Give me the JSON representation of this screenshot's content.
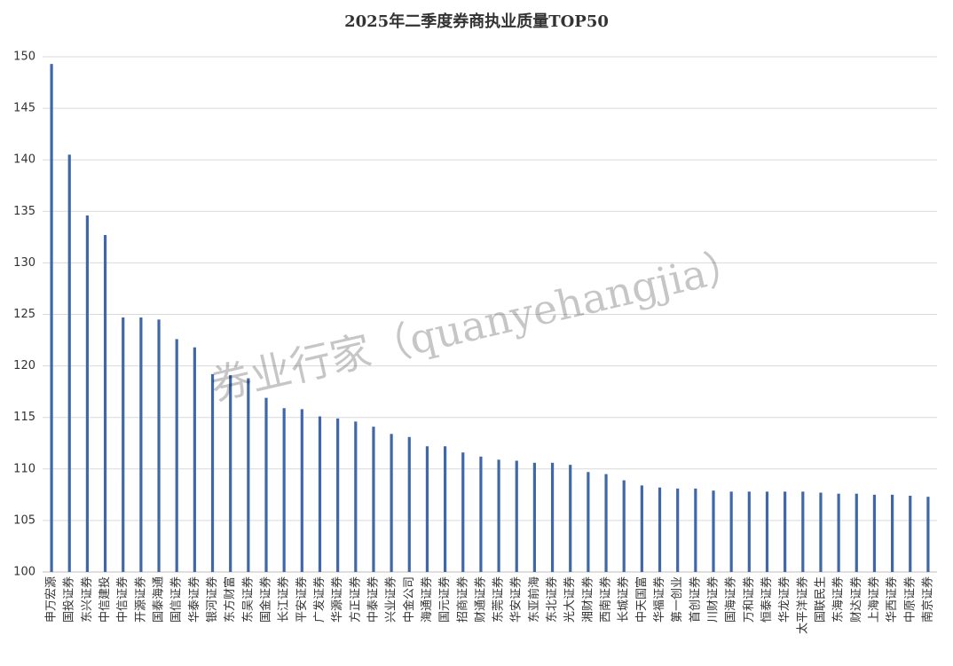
{
  "chart_data": {
    "type": "bar",
    "title": "2025年二季度券商执业质量TOP50",
    "watermark": "券业行家（quanyehangjia）",
    "categories": [
      "申万宏源",
      "国投证券",
      "东兴证券",
      "中信建投",
      "中信证券",
      "开源证券",
      "国泰海通",
      "国信证券",
      "华泰证券",
      "银河证券",
      "东方财富",
      "东吴证券",
      "国金证券",
      "长江证券",
      "平安证券",
      "广发证券",
      "华源证券",
      "方正证券",
      "中泰证券",
      "兴业证券",
      "中金公司",
      "海通证券",
      "国元证券",
      "招商证券",
      "财通证券",
      "东莞证券",
      "华安证券",
      "东亚前海",
      "东北证券",
      "光大证券",
      "湘财证券",
      "西南证券",
      "长城证券",
      "中天国富",
      "华福证券",
      "第一创业",
      "首创证券",
      "川财证券",
      "国海证券",
      "万和证券",
      "恒泰证券",
      "华龙证券",
      "太平洋证券",
      "国联民生",
      "东海证券",
      "财达证券",
      "上海证券",
      "华西证券",
      "中原证券",
      "南京证券"
    ],
    "values": [
      149.3,
      140.5,
      134.6,
      132.7,
      124.7,
      124.7,
      124.5,
      122.6,
      121.8,
      119.2,
      119.1,
      118.8,
      116.9,
      115.9,
      115.8,
      115.1,
      114.9,
      114.6,
      114.1,
      113.4,
      113.1,
      112.2,
      112.2,
      111.6,
      111.2,
      110.9,
      110.8,
      110.6,
      110.6,
      110.4,
      109.7,
      109.5,
      108.9,
      108.4,
      108.2,
      108.1,
      108.1,
      107.9,
      107.8,
      107.8,
      107.8,
      107.8,
      107.8,
      107.7,
      107.6,
      107.6,
      107.5,
      107.5,
      107.4,
      107.3
    ],
    "color": "#4068a8",
    "ylim": [
      100,
      150
    ],
    "yticks": [
      100,
      105,
      110,
      115,
      120,
      125,
      130,
      135,
      140,
      145,
      150
    ],
    "grid": true
  }
}
